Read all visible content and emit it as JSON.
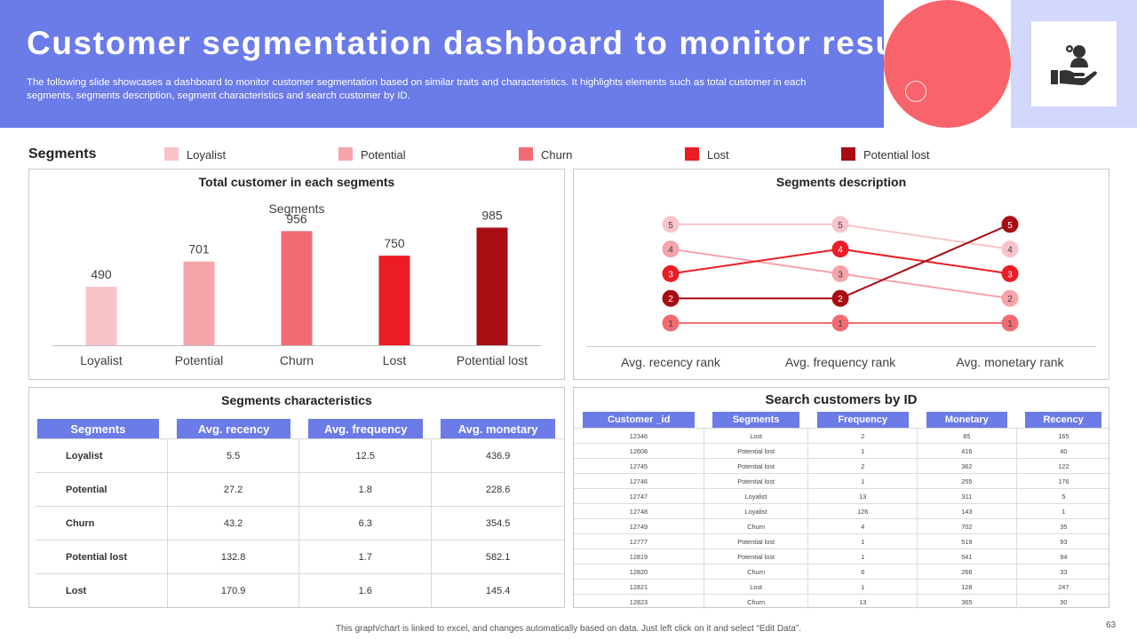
{
  "header": {
    "title": "Customer segmentation dashboard to monitor results",
    "subtitle": "The following slide showcases a dashboard to monitor customer segmentation based on similar traits and characteristics. It highlights elements such as total customer in each segments, segments description, segment characteristics and search customer by ID."
  },
  "legend": {
    "title": "Segments",
    "items": [
      {
        "label": "Loyalist",
        "color": "#f8c4c9"
      },
      {
        "label": "Potential",
        "color": "#f6a3aa"
      },
      {
        "label": "Churn",
        "color": "#f26b73"
      },
      {
        "label": "Lost",
        "color": "#ec1c24"
      },
      {
        "label": "Potential lost",
        "color": "#a80d14"
      }
    ]
  },
  "total_panel": {
    "title": "Total customer in each segments"
  },
  "description_panel": {
    "title": "Segments description"
  },
  "characteristics": {
    "title": "Segments characteristics",
    "headers": [
      "Segments",
      "Avg. recency",
      "Avg. frequency",
      "Avg. monetary"
    ],
    "rows": [
      [
        "Loyalist",
        "5.5",
        "12.5",
        "436.9"
      ],
      [
        "Potential",
        "27.2",
        "1.8",
        "228.6"
      ],
      [
        "Churn",
        "43.2",
        "6.3",
        "354.5"
      ],
      [
        "Potential lost",
        "132.8",
        "1.7",
        "582.1"
      ],
      [
        "Lost",
        "170.9",
        "1.6",
        "145.4"
      ]
    ]
  },
  "search": {
    "title": "Search customers by ID",
    "headers": [
      "Customer _id",
      "Segments",
      "Frequency",
      "Monetary",
      "Recency"
    ],
    "rows": [
      [
        "12346",
        "Lost",
        "2",
        "85",
        "165"
      ],
      [
        "12608",
        "Potential lost",
        "1",
        "416",
        "40"
      ],
      [
        "12745",
        "Potential lost",
        "2",
        "362",
        "122"
      ],
      [
        "12746",
        "Potential lost",
        "1",
        "255",
        "176"
      ],
      [
        "12747",
        "Loyalist",
        "13",
        "311",
        "5"
      ],
      [
        "12748",
        "Loyalist",
        "126",
        "143",
        "1"
      ],
      [
        "12749",
        "Churn",
        "4",
        "702",
        "35"
      ],
      [
        "12777",
        "Potential lost",
        "1",
        "519",
        "93"
      ],
      [
        "12819",
        "Potential lost",
        "1",
        "541",
        "94"
      ],
      [
        "12820",
        "Churn",
        "6",
        "266",
        "33"
      ],
      [
        "12821",
        "Lost",
        "1",
        "128",
        "247"
      ],
      [
        "12823",
        "Churn",
        "13",
        "365",
        "30"
      ]
    ]
  },
  "footer": {
    "note": "This graph/chart is linked to excel, and changes automatically based on data. Just left click on it and select “Edit Data”.",
    "page": "63"
  },
  "chart_data": [
    {
      "type": "bar",
      "title": "Segments",
      "categories": [
        "Loyalist",
        "Potential",
        "Churn",
        "Lost",
        "Potential lost"
      ],
      "values": [
        490,
        701,
        956,
        750,
        985
      ],
      "colors": [
        "#f8c4c9",
        "#f6a3aa",
        "#f26b73",
        "#ec1c24",
        "#a80d14"
      ],
      "ylim": [
        0,
        1100
      ]
    },
    {
      "type": "line",
      "categories": [
        "Avg. recency rank",
        "Avg. frequency rank",
        "Avg. monetary rank"
      ],
      "ylim": [
        0.5,
        5.5
      ],
      "series": [
        {
          "name": "Loyalist",
          "values": [
            5,
            5,
            4
          ],
          "color": "#f8c4c9"
        },
        {
          "name": "Potential",
          "values": [
            4,
            3,
            2
          ],
          "color": "#f6a3aa"
        },
        {
          "name": "Churn",
          "values": [
            1,
            1,
            1
          ],
          "color": "#f26b73"
        },
        {
          "name": "Lost",
          "values": [
            3,
            4,
            3
          ],
          "color": "#ec1c24"
        },
        {
          "name": "Potential lost",
          "values": [
            2,
            2,
            5
          ],
          "color": "#a80d14"
        }
      ]
    }
  ]
}
